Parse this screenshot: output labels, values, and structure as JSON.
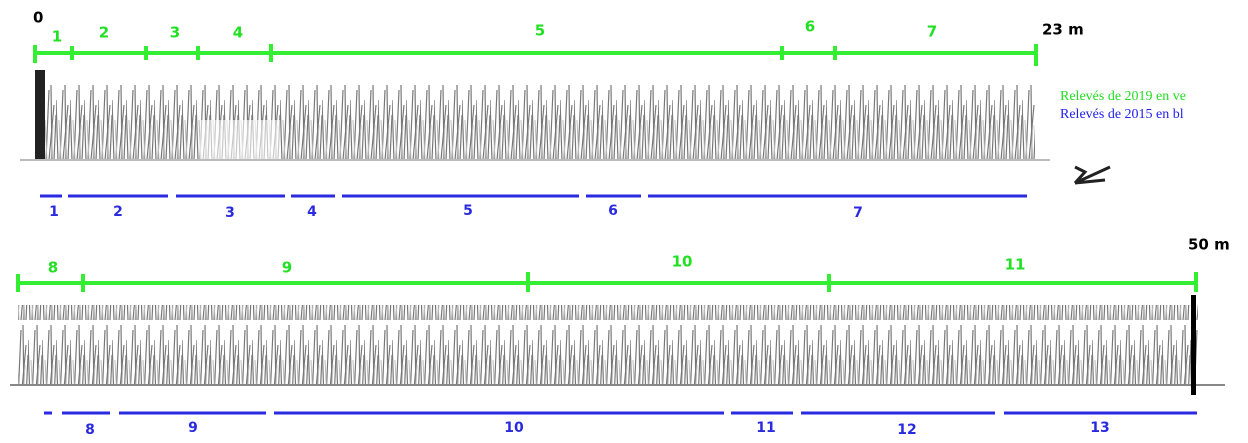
{
  "scale": {
    "start": "0",
    "mid": "23 m",
    "end": "50 m"
  },
  "green_segments": [
    "1",
    "2",
    "3",
    "4",
    "5",
    "6",
    "7",
    "8",
    "9",
    "10",
    "11"
  ],
  "blue_segments": [
    "1",
    "2",
    "3",
    "4",
    "5",
    "6",
    "7",
    "8",
    "9",
    "10",
    "11",
    "12",
    "13"
  ],
  "legend": [
    "Relevés de 2019 en ve",
    "Relevés de 2015 en bl"
  ]
}
